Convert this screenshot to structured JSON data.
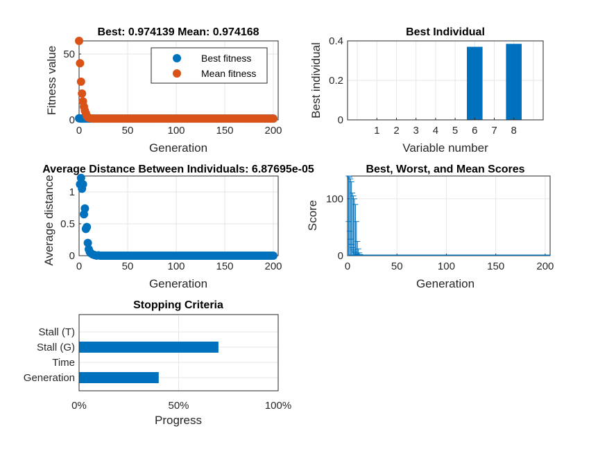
{
  "colors": {
    "blue": "#0072bd",
    "orange": "#d95319",
    "axis": "#262626",
    "grid": "#e6e6e6"
  },
  "chart_data": [
    {
      "id": "fitness",
      "type": "scatter",
      "title": "Best: 0.974139 Mean: 0.974168",
      "xlabel": "Generation",
      "ylabel": "Fitness value",
      "xlim": [
        0,
        205
      ],
      "ylim": [
        0,
        60
      ],
      "xticks": [
        "0",
        "50",
        "100",
        "150",
        "200"
      ],
      "yticks": [
        "0",
        "50"
      ],
      "legend_position": "top-right",
      "series": [
        {
          "name": "Best fitness",
          "color": "#0072bd",
          "points": [
            [
              0,
              1.2
            ],
            [
              1,
              1.1
            ],
            [
              2,
              1.0
            ],
            [
              3,
              1.0
            ],
            [
              4,
              1.0
            ],
            [
              5,
              0.99
            ],
            [
              6,
              0.98
            ],
            [
              7,
              0.98
            ],
            [
              8,
              0.98
            ],
            [
              10,
              0.975
            ],
            [
              12,
              0.975
            ],
            [
              15,
              0.974
            ],
            [
              200,
              0.974
            ]
          ]
        },
        {
          "name": "Mean fitness",
          "color": "#d95319",
          "points": [
            [
              0,
              60
            ],
            [
              1,
              43
            ],
            [
              2,
              29
            ],
            [
              3,
              20
            ],
            [
              4,
              14
            ],
            [
              5,
              10
            ],
            [
              6,
              7
            ],
            [
              7,
              5
            ],
            [
              8,
              3
            ],
            [
              9,
              2
            ],
            [
              10,
              1.5
            ],
            [
              12,
              1.2
            ],
            [
              14,
              1.0
            ],
            [
              16,
              0.98
            ],
            [
              20,
              0.975
            ],
            [
              200,
              0.974
            ]
          ]
        }
      ]
    },
    {
      "id": "best-individual",
      "type": "bar",
      "title": "Best Individual",
      "xlabel": "Variable number",
      "ylabel": "Best individual",
      "xlim": [
        -0.5,
        9.5
      ],
      "ylim": [
        0,
        0.4
      ],
      "categories": [
        "1",
        "2",
        "3",
        "4",
        "5",
        "6",
        "7",
        "8"
      ],
      "yticks": [
        "0",
        "0.2",
        "0.4"
      ],
      "values": [
        0,
        0,
        0,
        0,
        0,
        0.37,
        0,
        0.385
      ]
    },
    {
      "id": "distance",
      "type": "scatter",
      "title": "Average Distance Between Individuals: 6.87695e-05",
      "xlabel": "Generation",
      "ylabel": "Average distance",
      "xlim": [
        0,
        205
      ],
      "ylim": [
        0,
        1.25
      ],
      "xticks": [
        "0",
        "50",
        "100",
        "150",
        "200"
      ],
      "yticks": [
        "0",
        "0.5",
        "1"
      ],
      "series": [
        {
          "name": "",
          "color": "#0072bd",
          "points": [
            [
              1,
              1.12
            ],
            [
              2,
              1.22
            ],
            [
              3,
              1.05
            ],
            [
              4,
              1.12
            ],
            [
              5,
              0.65
            ],
            [
              6,
              0.74
            ],
            [
              7,
              0.42
            ],
            [
              8,
              0.45
            ],
            [
              9,
              0.2
            ],
            [
              10,
              0.1
            ],
            [
              11,
              0.06
            ],
            [
              12,
              0.04
            ],
            [
              14,
              0.02
            ],
            [
              16,
              0.01
            ],
            [
              20,
              0.005
            ],
            [
              200,
              6.87695e-05
            ]
          ]
        }
      ]
    },
    {
      "id": "scores",
      "type": "line",
      "title": "Best, Worst, and Mean Scores",
      "xlabel": "Generation",
      "ylabel": "Score",
      "xlim": [
        0,
        205
      ],
      "ylim": [
        0,
        140
      ],
      "xticks": [
        "0",
        "50",
        "100",
        "150",
        "200"
      ],
      "yticks": [
        "0",
        "100"
      ],
      "series": [
        {
          "name": "",
          "color": "#0072bd",
          "worst": [
            140,
            138,
            135,
            130,
            110,
            105,
            100,
            90,
            60,
            25,
            12,
            5,
            2,
            1
          ],
          "mean": [
            60,
            43,
            29,
            20,
            14,
            10,
            7,
            5,
            3,
            2,
            1.5,
            1.2,
            1.0,
            0.98
          ],
          "best": [
            1.2,
            1.1,
            1.0,
            1.0,
            1.0,
            0.99,
            0.98,
            0.98,
            0.98,
            0.975,
            0.975,
            0.974,
            0.974,
            0.974
          ]
        }
      ]
    },
    {
      "id": "stopping",
      "type": "bar",
      "orientation": "horizontal",
      "title": "Stopping Criteria",
      "xlabel": "Progress",
      "xlim": [
        0,
        100
      ],
      "xticks": [
        "0%",
        "50%",
        "100%"
      ],
      "categories": [
        "Stall (T)",
        "Stall (G)",
        "Time",
        "Generation"
      ],
      "values": [
        0,
        70,
        0,
        40
      ]
    }
  ]
}
